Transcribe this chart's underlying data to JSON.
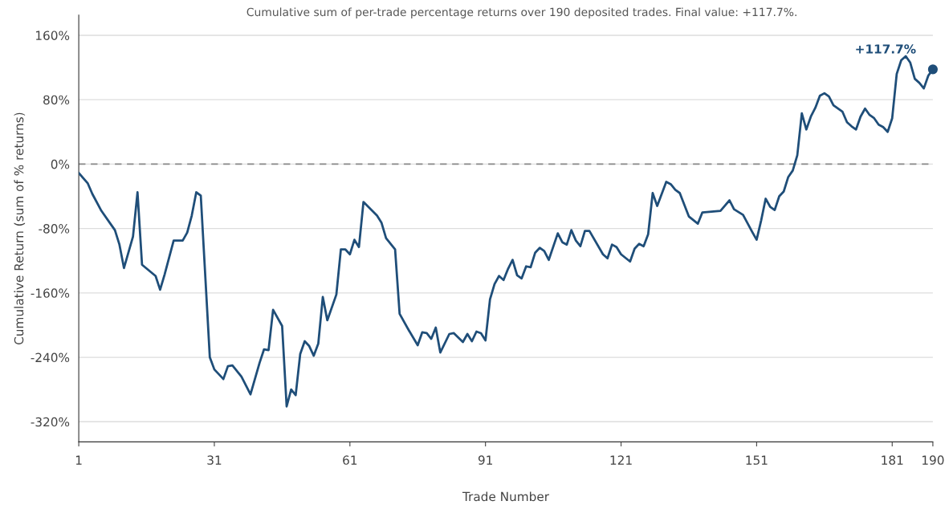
{
  "chart_data": {
    "type": "line",
    "title": "Cumulative sum of per-trade percentage returns over 190 deposited trades. Final value: +117.7%.",
    "xlabel": "Trade Number",
    "ylabel": "Cumulative Return (sum of % returns)",
    "series": [
      {
        "color": "#1f4e79",
        "x": [
          1,
          3,
          4,
          6,
          8,
          9,
          10,
          11,
          13,
          14,
          15,
          18,
          19,
          20,
          22,
          24,
          25,
          26,
          27,
          28,
          30,
          31,
          33,
          34,
          35,
          37,
          39,
          41,
          42,
          43,
          44,
          46,
          47,
          48,
          49,
          50,
          51,
          52,
          53,
          54,
          55,
          56,
          58,
          59,
          60,
          61,
          62,
          63,
          64,
          67,
          68,
          69,
          71,
          72,
          74,
          76,
          77,
          78,
          79,
          80,
          81,
          83,
          84,
          86,
          87,
          88,
          89,
          90,
          91,
          92,
          93,
          94,
          95,
          96,
          97,
          98,
          99,
          100,
          101,
          102,
          103,
          104,
          105,
          107,
          108,
          109,
          110,
          111,
          112,
          113,
          114,
          117,
          118,
          119,
          120,
          121,
          123,
          124,
          125,
          126,
          127,
          128,
          129,
          131,
          132,
          133,
          134,
          136,
          138,
          139,
          143,
          145,
          146,
          148,
          150,
          151,
          152,
          153,
          154,
          155,
          156,
          157,
          158,
          159,
          160,
          161,
          162,
          163,
          164,
          165,
          166,
          167,
          168,
          169,
          170,
          171,
          172,
          173,
          174,
          175,
          176,
          177,
          178,
          179,
          180,
          181,
          182,
          183,
          184,
          185,
          186,
          187,
          188,
          189,
          190
        ],
        "values": [
          -11,
          -24,
          -37,
          -58,
          -74,
          -82,
          -100,
          -129,
          -90,
          -35,
          -125,
          -139,
          -156,
          -137,
          -95,
          -95,
          -85,
          -64,
          -35,
          -39,
          -240,
          -255,
          -267,
          -251,
          -250,
          -264,
          -286,
          -247,
          -230,
          -231,
          -181,
          -201,
          -301,
          -280,
          -287,
          -236,
          -220,
          -226,
          -238,
          -223,
          -165,
          -194,
          -162,
          -106,
          -106,
          -112,
          -94,
          -103,
          -47,
          -64,
          -73,
          -92,
          -106,
          -186,
          -206,
          -225,
          -209,
          -210,
          -217,
          -203,
          -234,
          -211,
          -210,
          -221,
          -211,
          -220,
          -208,
          -210,
          -219,
          -168,
          -149,
          -139,
          -144,
          -130,
          -119,
          -138,
          -142,
          -127,
          -128,
          -110,
          -104,
          -108,
          -119,
          -86,
          -97,
          -100,
          -82,
          -95,
          -102,
          -83,
          -83,
          -112,
          -117,
          -100,
          -103,
          -112,
          -121,
          -105,
          -99,
          -102,
          -87,
          -36,
          -52,
          -22,
          -25,
          -32,
          -36,
          -65,
          -74,
          -60,
          -58,
          -45,
          -56,
          -63,
          -84,
          -94,
          -70,
          -43,
          -53,
          -57,
          -40,
          -34,
          -16,
          -8,
          11,
          63,
          43,
          59,
          70,
          85,
          88,
          84,
          73,
          69,
          65,
          52,
          47,
          43,
          59,
          69,
          61,
          57,
          49,
          46,
          40,
          57,
          112,
          129,
          134,
          126,
          106,
          101,
          94,
          110,
          117.7
        ]
      },
      {
        "type": "scatter",
        "marker": "circle",
        "color": "#1f4e79",
        "x": [
          190
        ],
        "values": [
          117.7
        ]
      }
    ],
    "annotations": [
      {
        "text": "+117.7%",
        "x": 190,
        "y": 117.7
      }
    ],
    "xlim": [
      1,
      190
    ],
    "xticks": [
      1,
      31,
      61,
      91,
      121,
      151,
      181,
      190
    ],
    "ylim": [
      -345,
      185
    ],
    "yticks": [
      {
        "value": -320,
        "label": "-320%"
      },
      {
        "value": -240,
        "label": "-240%"
      },
      {
        "value": -160,
        "label": "-160%"
      },
      {
        "value": -80,
        "label": "-80%"
      },
      {
        "value": 0,
        "label": "0%"
      },
      {
        "value": 80,
        "label": "80%"
      },
      {
        "value": 160,
        "label": "160%"
      }
    ],
    "ref_lines": [
      {
        "axis": "y",
        "value": 0,
        "color": "#888888",
        "line_style": "dashed"
      }
    ],
    "grid": "y",
    "legend": false,
    "line_style": "solid"
  }
}
